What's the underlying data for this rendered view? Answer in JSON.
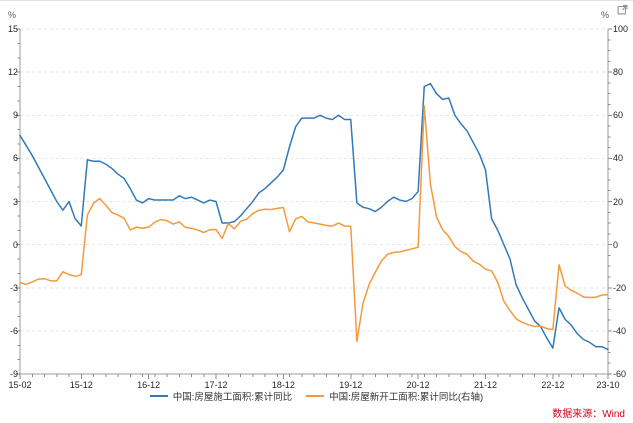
{
  "axes": {
    "left_unit": "%",
    "right_unit": "%"
  },
  "source_note": {
    "text": "数据来源：Wind",
    "color": "#d9001b"
  },
  "icons": {
    "top_right": "external-link"
  },
  "legend": [
    {
      "label": "中国:房屋施工面积:累计同比",
      "color": "#3279b7"
    },
    {
      "label": "中国:房屋新开工面积:累计同比(右轴)",
      "color": "#f5993d"
    }
  ],
  "chart_data": {
    "type": "line",
    "title": "",
    "grid": "dashed horizontal",
    "legend_position": "bottom center",
    "categories": [
      "15-02",
      "15-03",
      "15-04",
      "15-05",
      "15-06",
      "15-07",
      "15-08",
      "15-09",
      "15-10",
      "15-11",
      "15-12",
      "16-02",
      "16-03",
      "16-04",
      "16-05",
      "16-06",
      "16-07",
      "16-08",
      "16-09",
      "16-10",
      "16-11",
      "16-12",
      "17-02",
      "17-03",
      "17-04",
      "17-05",
      "17-06",
      "17-07",
      "17-08",
      "17-09",
      "17-10",
      "17-11",
      "17-12",
      "18-02",
      "18-03",
      "18-04",
      "18-05",
      "18-06",
      "18-07",
      "18-08",
      "18-09",
      "18-10",
      "18-11",
      "18-12",
      "19-02",
      "19-03",
      "19-04",
      "19-05",
      "19-06",
      "19-07",
      "19-08",
      "19-09",
      "19-10",
      "19-11",
      "19-12",
      "20-02",
      "20-03",
      "20-04",
      "20-05",
      "20-06",
      "20-07",
      "20-08",
      "20-09",
      "20-10",
      "20-11",
      "20-12",
      "21-02",
      "21-03",
      "21-04",
      "21-05",
      "21-06",
      "21-07",
      "21-08",
      "21-09",
      "21-10",
      "21-11",
      "21-12",
      "22-02",
      "22-03",
      "22-04",
      "22-05",
      "22-06",
      "22-07",
      "22-08",
      "22-09",
      "22-10",
      "22-11",
      "22-12",
      "23-02",
      "23-03",
      "23-04",
      "23-05",
      "23-06",
      "23-07",
      "23-08",
      "23-09",
      "23-10"
    ],
    "x_ticks": [
      {
        "label": "15-02",
        "index": 0
      },
      {
        "label": "15-12",
        "index": 10
      },
      {
        "label": "16-12",
        "index": 21
      },
      {
        "label": "17-12",
        "index": 32
      },
      {
        "label": "18-12",
        "index": 43
      },
      {
        "label": "19-12",
        "index": 54
      },
      {
        "label": "20-12",
        "index": 65
      },
      {
        "label": "21-12",
        "index": 76
      },
      {
        "label": "22-12",
        "index": 87
      },
      {
        "label": "23-10",
        "index": 96
      }
    ],
    "left_axis": {
      "min": -9,
      "max": 15,
      "tick_step": 3,
      "minor_step": 1,
      "ticks": [
        15,
        12,
        9,
        6,
        3,
        0,
        -3,
        -6,
        -9
      ]
    },
    "right_axis": {
      "min": -60,
      "max": 100,
      "tick_step": 20,
      "minor_step": 5,
      "ticks": [
        100,
        80,
        60,
        40,
        20,
        0,
        -20,
        -40,
        -60
      ]
    },
    "series": [
      {
        "name": "中国:房屋施工面积:累计同比",
        "axis": "left",
        "color": "#3279b7",
        "values": [
          7.6,
          6.9,
          6.2,
          5.4,
          4.6,
          3.8,
          3.0,
          2.4,
          3.0,
          1.8,
          1.3,
          5.9,
          5.8,
          5.8,
          5.6,
          5.3,
          4.9,
          4.6,
          3.9,
          3.1,
          2.9,
          3.2,
          3.1,
          3.1,
          3.1,
          3.1,
          3.4,
          3.2,
          3.3,
          3.1,
          2.9,
          3.1,
          3.0,
          1.5,
          1.5,
          1.6,
          2.0,
          2.5,
          3.0,
          3.6,
          3.9,
          4.3,
          4.7,
          5.2,
          6.8,
          8.2,
          8.8,
          8.8,
          8.8,
          9.0,
          8.8,
          8.7,
          9.0,
          8.7,
          8.7,
          2.9,
          2.6,
          2.5,
          2.3,
          2.6,
          3.0,
          3.3,
          3.1,
          3.0,
          3.2,
          3.7,
          11.0,
          11.2,
          10.5,
          10.1,
          10.2,
          9.0,
          8.4,
          7.9,
          7.1,
          6.3,
          5.2,
          1.8,
          1.0,
          0.0,
          -1.0,
          -2.8,
          -3.7,
          -4.5,
          -5.3,
          -5.7,
          -6.5,
          -7.2,
          -4.4,
          -5.2,
          -5.6,
          -6.2,
          -6.6,
          -6.8,
          -7.1,
          -7.1,
          -7.3
        ]
      },
      {
        "name": "中国:房屋新开工面积:累计同比(右轴)",
        "axis": "right",
        "color": "#f5993d",
        "values": [
          -17.7,
          -18.4,
          -17.3,
          -16.0,
          -15.8,
          -16.8,
          -16.8,
          -12.6,
          -13.9,
          -14.7,
          -14.0,
          13.7,
          19.2,
          21.4,
          18.3,
          14.9,
          13.7,
          12.2,
          6.8,
          8.1,
          7.6,
          8.1,
          10.4,
          11.6,
          11.1,
          9.5,
          10.6,
          8.0,
          7.6,
          6.8,
          5.6,
          6.9,
          7.0,
          2.9,
          9.7,
          7.3,
          10.8,
          11.8,
          14.4,
          15.9,
          16.4,
          16.3,
          16.8,
          17.2,
          6.0,
          11.9,
          13.1,
          10.5,
          10.1,
          9.5,
          8.9,
          8.6,
          10.0,
          8.6,
          8.5,
          -44.9,
          -27.2,
          -18.4,
          -12.8,
          -7.6,
          -4.5,
          -3.6,
          -3.4,
          -2.6,
          -2.0,
          -1.2,
          64.3,
          28.2,
          12.8,
          6.9,
          3.8,
          -0.9,
          -3.2,
          -4.5,
          -7.7,
          -9.1,
          -11.4,
          -12.2,
          -17.5,
          -26.3,
          -30.6,
          -34.4,
          -36.1,
          -37.2,
          -38.0,
          -37.8,
          -38.9,
          -39.4,
          -9.4,
          -19.2,
          -21.2,
          -22.6,
          -24.3,
          -24.5,
          -24.4,
          -23.4,
          -23.2
        ]
      }
    ]
  }
}
